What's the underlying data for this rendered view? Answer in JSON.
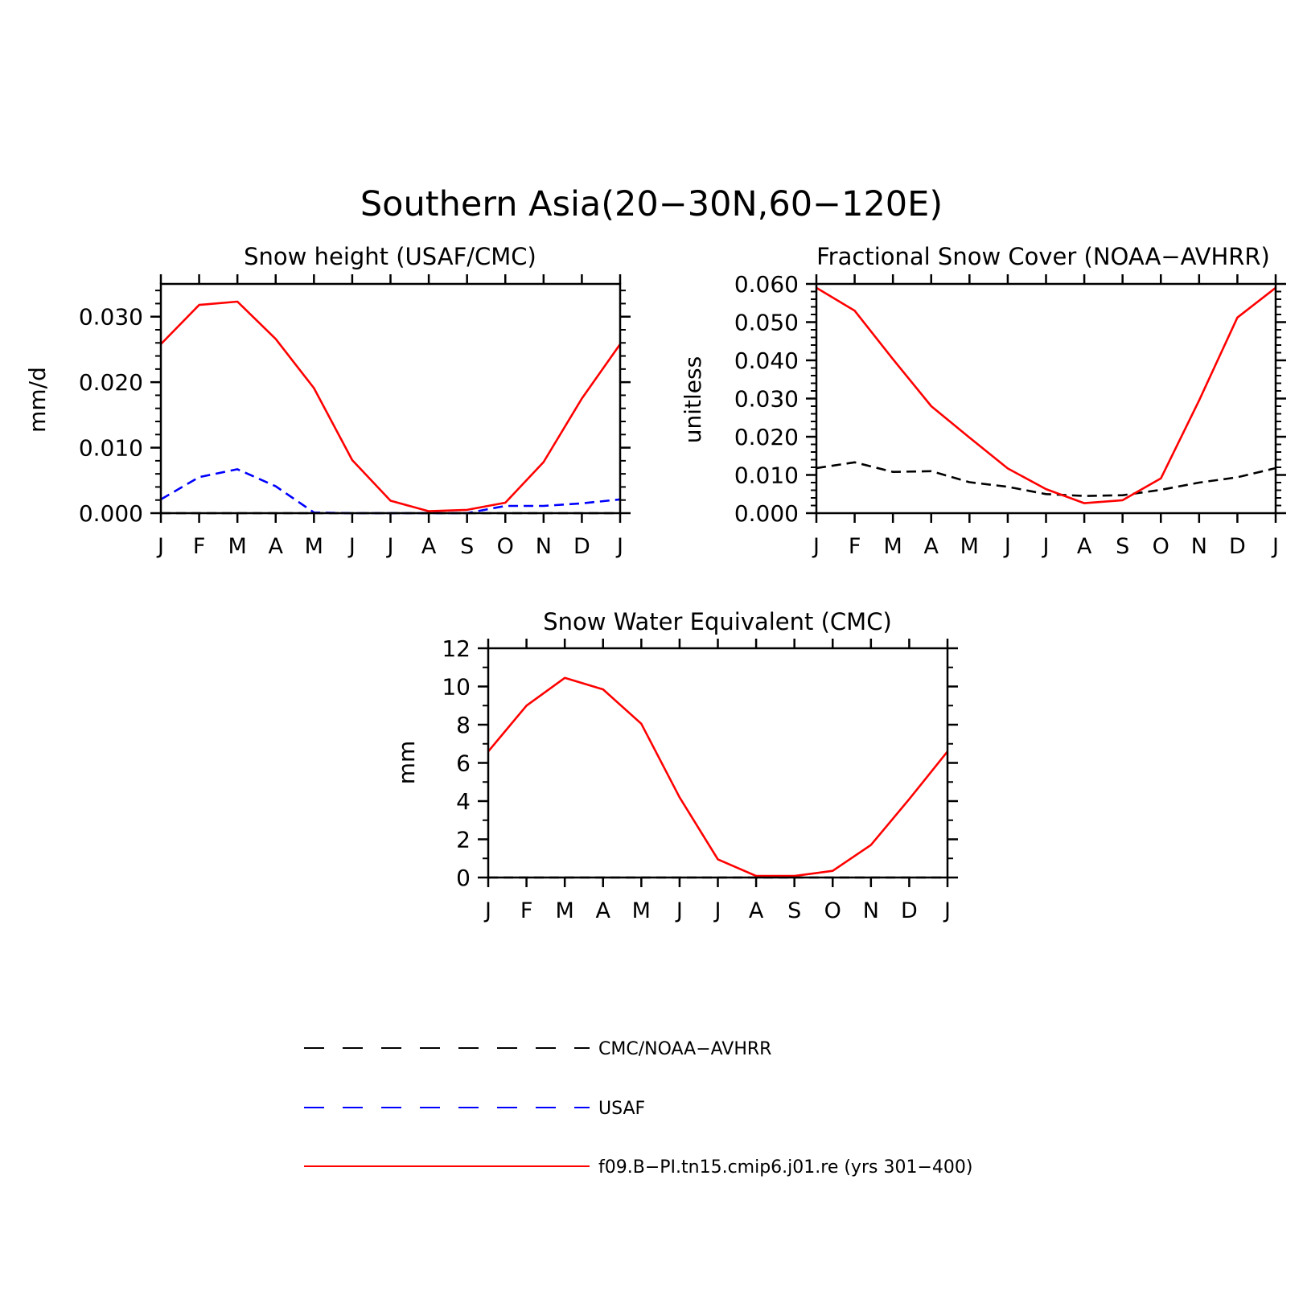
{
  "title": "Southern Asia(20−30N,60−120E)",
  "colors": {
    "obs_black": "#000000",
    "obs_blue": "#0000ff",
    "model_red": "#ff0000"
  },
  "chart_data": [
    {
      "type": "line",
      "title": "Snow height (USAF/CMC)",
      "xlabel": "",
      "ylabel": "mm/d",
      "categories": [
        "J",
        "F",
        "M",
        "A",
        "M",
        "J",
        "J",
        "A",
        "S",
        "O",
        "N",
        "D",
        "J"
      ],
      "ylim": [
        0,
        0.035
      ],
      "yticks": [
        0.0,
        0.01,
        0.02,
        0.03
      ],
      "ytick_labels": [
        "0.000",
        "0.010",
        "0.020",
        "0.030"
      ],
      "series": [
        {
          "name": "f09.B−PI.tn15.cmip6.j01.re (yrs 301−400)",
          "color": "#ff0000",
          "dash": "solid",
          "values": [
            0.0258,
            0.0318,
            0.0323,
            0.0266,
            0.0191,
            0.0081,
            0.0019,
            0.0003,
            0.0005,
            0.0016,
            0.0078,
            0.0175,
            0.0258
          ]
        },
        {
          "name": "USAF",
          "color": "#0000ff",
          "dash": "dashed",
          "values": [
            0.0021,
            0.0055,
            0.0067,
            0.0041,
            0.0001,
            0.0,
            0.0,
            0.0,
            0.0,
            0.0011,
            0.0011,
            0.0015,
            0.0021
          ]
        },
        {
          "name": "CMC/NOAA−AVHRR",
          "color": "#000000",
          "dash": "dashed",
          "values": [
            0.0,
            0.0,
            0.0,
            0.0,
            0.0,
            0.0,
            0.0,
            0.0,
            0.0,
            0.0,
            0.0,
            0.0,
            0.0
          ]
        }
      ]
    },
    {
      "type": "line",
      "title": "Fractional Snow Cover (NOAA−AVHRR)",
      "xlabel": "",
      "ylabel": "unitless",
      "categories": [
        "J",
        "F",
        "M",
        "A",
        "M",
        "J",
        "J",
        "A",
        "S",
        "O",
        "N",
        "D",
        "J"
      ],
      "ylim": [
        0,
        0.06
      ],
      "yticks": [
        0.0,
        0.01,
        0.02,
        0.03,
        0.04,
        0.05,
        0.06
      ],
      "ytick_labels": [
        "0.000",
        "0.010",
        "0.020",
        "0.030",
        "0.040",
        "0.050",
        "0.060"
      ],
      "series": [
        {
          "name": "f09.B−PI.tn15.cmip6.j01.re (yrs 301−400)",
          "color": "#ff0000",
          "dash": "solid",
          "values": [
            0.059,
            0.053,
            0.0403,
            0.028,
            0.0198,
            0.0117,
            0.0063,
            0.0026,
            0.0034,
            0.0091,
            0.0295,
            0.0512,
            0.059
          ]
        },
        {
          "name": "CMC/NOAA−AVHRR",
          "color": "#000000",
          "dash": "dashed",
          "values": [
            0.0118,
            0.0133,
            0.0108,
            0.011,
            0.0081,
            0.0069,
            0.005,
            0.0045,
            0.0047,
            0.0061,
            0.008,
            0.0094,
            0.0118
          ]
        }
      ]
    },
    {
      "type": "line",
      "title": "Snow Water Equivalent (CMC)",
      "xlabel": "",
      "ylabel": "mm",
      "categories": [
        "J",
        "F",
        "M",
        "A",
        "M",
        "J",
        "J",
        "A",
        "S",
        "O",
        "N",
        "D",
        "J"
      ],
      "ylim": [
        0,
        12
      ],
      "yticks": [
        0,
        2,
        4,
        6,
        8,
        10,
        12
      ],
      "ytick_labels": [
        "0",
        "2",
        "4",
        "6",
        "8",
        "10",
        "12"
      ],
      "series": [
        {
          "name": "f09.B−PI.tn15.cmip6.j01.re (yrs 301−400)",
          "color": "#ff0000",
          "dash": "solid",
          "values": [
            6.6,
            9.0,
            10.45,
            9.85,
            8.05,
            4.2,
            0.95,
            0.08,
            0.08,
            0.35,
            1.7,
            4.1,
            6.6
          ]
        },
        {
          "name": "CMC/NOAA−AVHRR",
          "color": "#000000",
          "dash": "dashed",
          "values": [
            0,
            0,
            0,
            0,
            0,
            0,
            0,
            0,
            0,
            0,
            0,
            0,
            0
          ]
        }
      ]
    }
  ],
  "legend": [
    {
      "label": "CMC/NOAA−AVHRR",
      "color": "#000000",
      "dash": "dashed"
    },
    {
      "label": "USAF",
      "color": "#0000ff",
      "dash": "dashed"
    },
    {
      "label": "f09.B−PI.tn15.cmip6.j01.re (yrs 301−400)",
      "color": "#ff0000",
      "dash": "solid"
    }
  ]
}
